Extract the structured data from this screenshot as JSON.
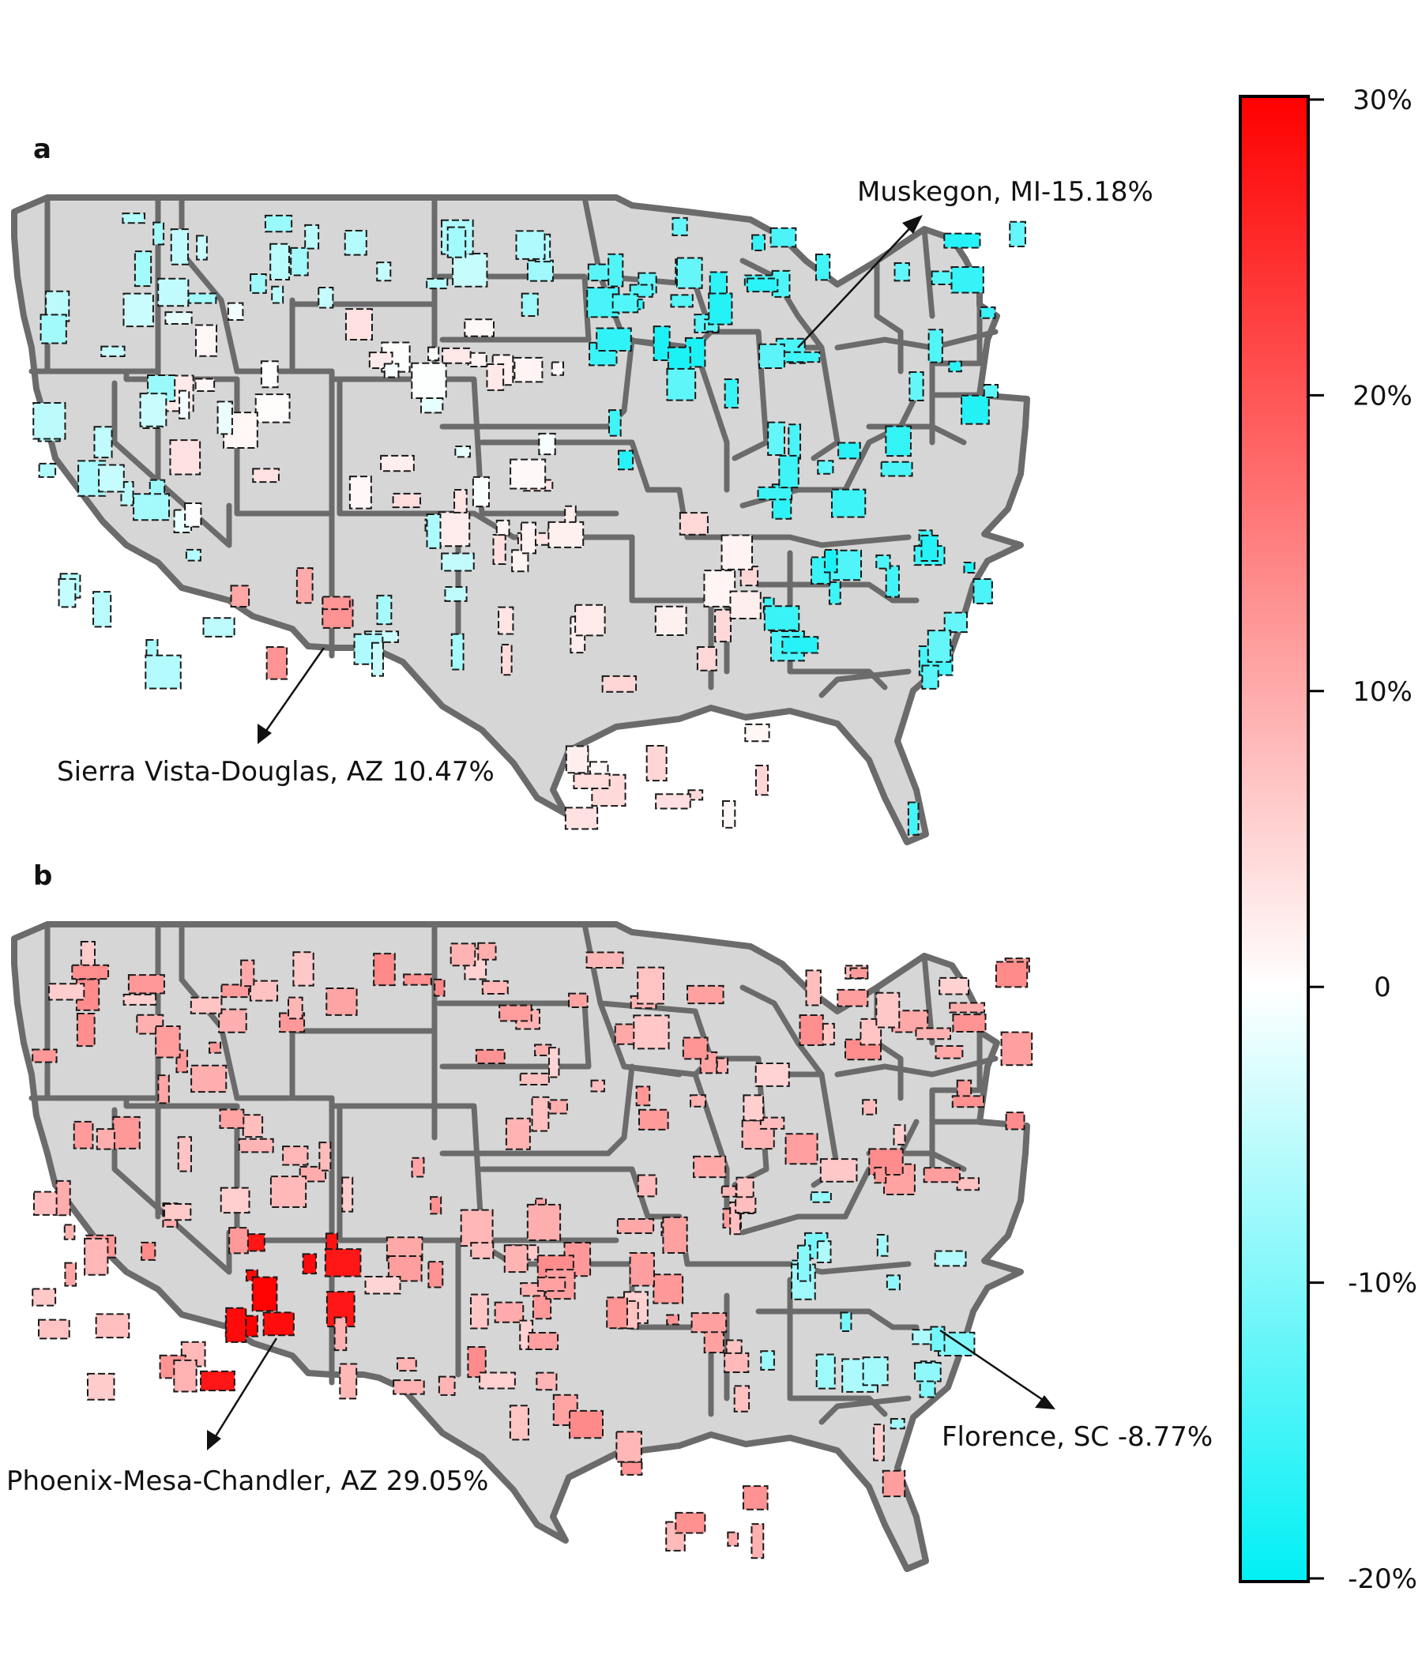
{
  "panels": [
    {
      "label": "a",
      "annotations": [
        {
          "name": "muskegon-annotation",
          "text": "Muskegon, MI-15.18%",
          "value_pct": -15.18
        },
        {
          "name": "sierra-vista-annotation",
          "text": "Sierra Vista-Douglas, AZ 10.47%",
          "value_pct": 10.47
        }
      ]
    },
    {
      "label": "b",
      "annotations": [
        {
          "name": "phoenix-annotation",
          "text": "Phoenix-Mesa-Chandler, AZ 29.05%",
          "value_pct": 29.05
        },
        {
          "name": "florence-annotation",
          "text": "Florence, SC -8.77%",
          "value_pct": -8.77
        }
      ]
    }
  ],
  "colorbar": {
    "ticks": [
      "30%",
      "20%",
      "10%",
      "0",
      "-10%",
      "-20%"
    ],
    "tick_values": [
      30,
      20,
      10,
      0,
      -10,
      -20
    ],
    "min": -20,
    "max": 30,
    "colors": {
      "max": "#ff0000",
      "mid": "#ffffff",
      "min": "#00f0f5"
    }
  },
  "colors": {
    "state_fill": "#d6d6d6",
    "state_border": "#6b6b6b"
  }
}
